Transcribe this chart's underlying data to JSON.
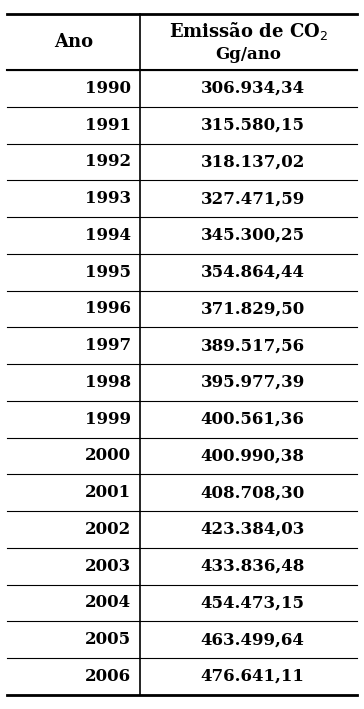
{
  "header_col1": "Ano",
  "header_col2_line1": "Emissão de CO₂",
  "header_col2_line2": "Gg/ano",
  "years": [
    1990,
    1991,
    1992,
    1993,
    1994,
    1995,
    1996,
    1997,
    1998,
    1999,
    2000,
    2001,
    2002,
    2003,
    2004,
    2005,
    2006
  ],
  "values": [
    "306.934,34",
    "315.580,15",
    "318.137,02",
    "327.471,59",
    "345.300,25",
    "354.864,44",
    "371.829,50",
    "389.517,56",
    "395.977,39",
    "400.561,36",
    "400.990,38",
    "408.708,30",
    "423.384,03",
    "433.836,48",
    "454.473,15",
    "463.499,64",
    "476.641,11"
  ],
  "bg_color": "#ffffff",
  "text_color": "#000000",
  "header_fontsize": 13,
  "cell_fontsize": 12,
  "fig_width": 3.64,
  "fig_height": 7.09,
  "dpi": 100
}
